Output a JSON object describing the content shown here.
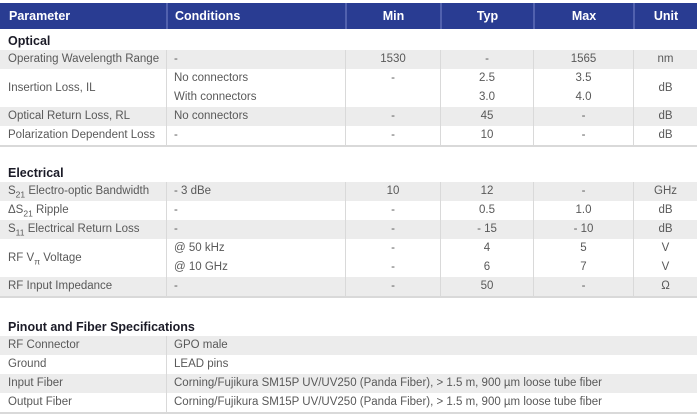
{
  "colors": {
    "header_bg": "#293c92",
    "header_sep": "#5161ae",
    "row_shaded": "#ececec",
    "body_text": "#595959",
    "title_text": "#1b1b27",
    "section_border": "#d9d9d9",
    "col_sep": "#d9d9d9"
  },
  "table": {
    "columns": [
      "Parameter",
      "Conditions",
      "Min",
      "Typ",
      "Max",
      "Unit"
    ]
  },
  "sections": [
    {
      "title": "Optical",
      "rows": [
        {
          "param": {
            "pre": "Operating Wavelength Range"
          },
          "conditions": [
            "-"
          ],
          "min": [
            "1530"
          ],
          "typ": [
            "-"
          ],
          "max": [
            "1565"
          ],
          "unit": [
            "nm"
          ]
        },
        {
          "param": {
            "pre": "Insertion Loss, IL"
          },
          "conditions": [
            "No connectors",
            "With connectors"
          ],
          "min": [
            "-",
            ""
          ],
          "typ": [
            "2.5",
            "3.0"
          ],
          "max": [
            "3.5",
            "4.0"
          ],
          "unit": [
            "dB"
          ]
        },
        {
          "param": {
            "pre": "Optical Return Loss, RL"
          },
          "conditions": [
            "No connectors"
          ],
          "min": [
            "-"
          ],
          "typ": [
            "45"
          ],
          "max": [
            "-"
          ],
          "unit": [
            "dB"
          ]
        },
        {
          "param": {
            "pre": "Polarization Dependent Loss"
          },
          "conditions": [
            "-"
          ],
          "min": [
            "-"
          ],
          "typ": [
            "10"
          ],
          "max": [
            "-"
          ],
          "unit": [
            "dB"
          ]
        }
      ]
    },
    {
      "title": "Electrical",
      "rows": [
        {
          "param": {
            "pre": "S",
            "sub": "21",
            "post": " Electro-optic Bandwidth"
          },
          "conditions": [
            "- 3 dBe"
          ],
          "min": [
            "10"
          ],
          "typ": [
            "12"
          ],
          "max": [
            "-"
          ],
          "unit": [
            "GHz"
          ]
        },
        {
          "param": {
            "pre": "ΔS",
            "sub": "21",
            "post": " Ripple"
          },
          "conditions": [
            "-"
          ],
          "min": [
            "-"
          ],
          "typ": [
            "0.5"
          ],
          "max": [
            "1.0"
          ],
          "unit": [
            "dB"
          ]
        },
        {
          "param": {
            "pre": "S",
            "sub": "11",
            "post": " Electrical Return Loss"
          },
          "conditions": [
            "-"
          ],
          "min": [
            "-"
          ],
          "typ": [
            "- 15"
          ],
          "max": [
            "- 10"
          ],
          "unit": [
            "dB"
          ]
        },
        {
          "param": {
            "pre": "RF V",
            "sub": "π",
            "post": " Voltage"
          },
          "conditions": [
            "@ 50 kHz",
            "@ 10 GHz"
          ],
          "min": [
            "-",
            "-"
          ],
          "typ": [
            "4",
            "6"
          ],
          "max": [
            "5",
            "7"
          ],
          "unit": [
            "V",
            "V"
          ]
        },
        {
          "param": {
            "pre": "RF Input Impedance"
          },
          "conditions": [
            "-"
          ],
          "min": [
            "-"
          ],
          "typ": [
            "50"
          ],
          "max": [
            "-"
          ],
          "unit": [
            "Ω"
          ]
        }
      ]
    },
    {
      "title": "Pinout and Fiber Specifications",
      "rows": [
        {
          "param": {
            "pre": "RF Connector"
          },
          "value": [
            "GPO male"
          ]
        },
        {
          "param": {
            "pre": "Ground"
          },
          "value": [
            "LEAD pins"
          ]
        },
        {
          "param": {
            "pre": "Input Fiber"
          },
          "value": [
            "Corning/Fujikura SM15P UV/UV250 (Panda Fiber), > 1.5 m, 900 µm loose tube fiber"
          ]
        },
        {
          "param": {
            "pre": "Output Fiber"
          },
          "value": [
            "Corning/Fujikura SM15P UV/UV250 (Panda Fiber), > 1.5 m, 900 µm loose tube fiber"
          ]
        }
      ]
    }
  ]
}
